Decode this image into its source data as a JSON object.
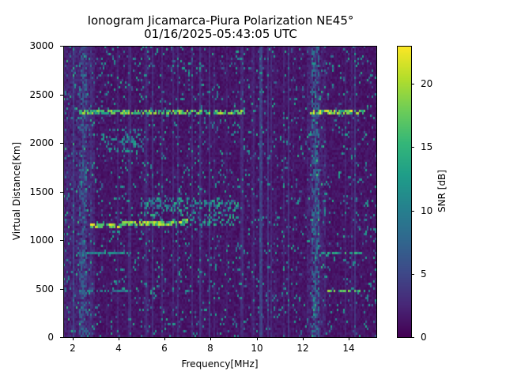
{
  "chart_data": {
    "type": "heatmap",
    "title": "Ionogram Jicamarca-Piura Polarization NE45°",
    "subtitle": "01/16/2025-05:43:05 UTC",
    "xlabel": "Frequency[MHz]",
    "ylabel": "Virtual Distance[Km]",
    "colorbar_label": "SNR [dB]",
    "colormap": "viridis",
    "xlim": [
      1.6,
      15.2
    ],
    "ylim": [
      0,
      3000
    ],
    "clim": [
      0,
      23
    ],
    "x_ticks": [
      2,
      4,
      6,
      8,
      10,
      12,
      14
    ],
    "y_ticks": [
      0,
      500,
      1000,
      1500,
      2000,
      2500,
      3000
    ],
    "colorbar_ticks": [
      0,
      5,
      10,
      15,
      20
    ],
    "grid": false,
    "background_snr_db": 1.5,
    "features": [
      {
        "name": "main-echo-trace",
        "kind": "trace",
        "f_start": 2.8,
        "f_end": 7.0,
        "d_start": 1150,
        "d_end": 1190,
        "snr_db": 22,
        "width_km": 40
      },
      {
        "name": "echo-spread-upper",
        "kind": "patch",
        "f_start": 5.0,
        "f_end": 9.2,
        "d_start": 1150,
        "d_end": 1450,
        "snr_db": 14
      },
      {
        "name": "echo-diffuse-2000km",
        "kind": "patch",
        "f_start": 3.2,
        "f_end": 5.2,
        "d_start": 1900,
        "d_end": 2150,
        "snr_db": 12
      },
      {
        "name": "line-2320km-low",
        "kind": "hline",
        "f_start": 2.3,
        "f_end": 9.5,
        "d": 2320,
        "snr_db": 21
      },
      {
        "name": "line-2320km-high",
        "kind": "hline",
        "f_start": 12.3,
        "f_end": 14.8,
        "d": 2320,
        "snr_db": 23
      },
      {
        "name": "line-870km-low",
        "kind": "hline",
        "f_start": 2.3,
        "f_end": 4.4,
        "d": 870,
        "snr_db": 14
      },
      {
        "name": "line-870km-high",
        "kind": "hline",
        "f_start": 12.8,
        "f_end": 14.6,
        "d": 870,
        "snr_db": 17
      },
      {
        "name": "line-480km-low",
        "kind": "hline",
        "f_start": 2.3,
        "f_end": 4.6,
        "d": 480,
        "snr_db": 12
      },
      {
        "name": "line-480km-high",
        "kind": "hline",
        "f_start": 13.0,
        "f_end": 14.7,
        "d": 480,
        "snr_db": 20
      },
      {
        "name": "vertical-interference-10.2MHz",
        "kind": "vline",
        "f": 10.2,
        "snr_db": 5
      },
      {
        "name": "vertical-band-2.4MHz",
        "kind": "vband",
        "f_start": 2.3,
        "f_end": 2.6,
        "snr_db": 6
      },
      {
        "name": "vertical-band-12.5MHz",
        "kind": "vband",
        "f_start": 12.4,
        "f_end": 12.7,
        "snr_db": 7
      }
    ]
  }
}
